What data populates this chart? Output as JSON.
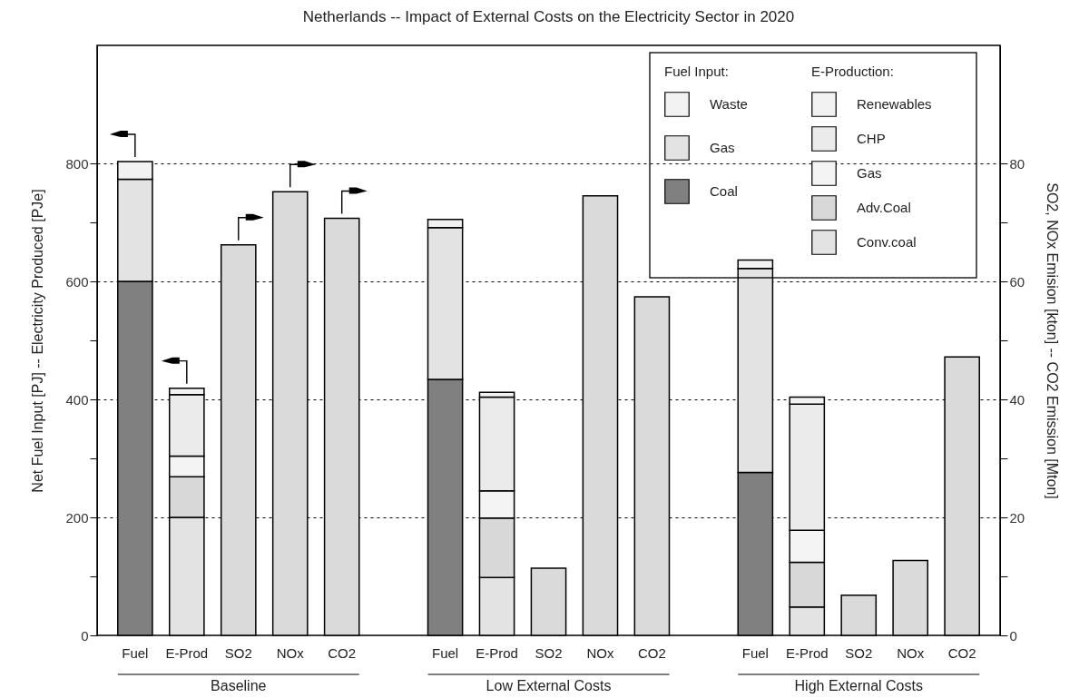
{
  "chart_data": {
    "type": "bar",
    "title": "Netherlands -- Impact of External Costs on the Electricity Sector in 2020",
    "ylabel": "Net Fuel Input [PJ]  --  Electricity Produced [PJe]",
    "y2label": "SO2, NOx Emision [kton]  --  CO2 Emission [Mton]",
    "legend_title": [
      "Fuel Input:",
      "E-Production:"
    ],
    "categories": [
      "Fuel",
      "E-Prod",
      "SO2",
      "NOx",
      "CO2",
      null,
      "Fuel",
      "E-Prod",
      "SO2",
      "NOx",
      "CO2",
      null,
      "Fuel",
      "E-Prod",
      "SO2",
      "NOx",
      "CO2"
    ],
    "stacked": true,
    "series": [
      {
        "name": "Coal",
        "color": "#808080",
        "values": [
          600,
          null,
          null,
          null,
          null,
          null,
          434,
          null,
          null,
          null,
          null,
          null,
          276,
          null,
          null,
          null,
          null
        ]
      },
      {
        "name": "Gas",
        "color": "#e3e3e3",
        "values": [
          173,
          null,
          null,
          null,
          null,
          null,
          257,
          null,
          null,
          null,
          null,
          null,
          346,
          null,
          null,
          null,
          null
        ]
      },
      {
        "name": "Waste",
        "color": "#f2f2f2",
        "values": [
          30,
          null,
          null,
          null,
          null,
          null,
          14,
          null,
          null,
          null,
          null,
          null,
          14,
          null,
          null,
          null,
          null
        ]
      },
      {
        "name": "Conv.coal",
        "color": "#e3e3e3",
        "values": [
          null,
          200,
          null,
          null,
          null,
          null,
          null,
          98,
          null,
          null,
          null,
          null,
          null,
          48,
          null,
          null,
          null
        ]
      },
      {
        "name": "Adv.Coal",
        "color": "#d8d8d8",
        "values": [
          null,
          69,
          null,
          null,
          null,
          null,
          null,
          101,
          null,
          null,
          null,
          null,
          null,
          76,
          null,
          null,
          null
        ]
      },
      {
        "name": "Gas",
        "color": "#f4f4f4",
        "values": [
          null,
          35,
          null,
          null,
          null,
          null,
          null,
          46,
          null,
          null,
          null,
          null,
          null,
          54,
          null,
          null,
          null
        ]
      },
      {
        "name": "CHP",
        "color": "#ebebeb",
        "values": [
          null,
          104,
          null,
          null,
          null,
          null,
          null,
          159,
          null,
          null,
          null,
          null,
          null,
          214,
          null,
          null,
          null
        ]
      },
      {
        "name": "Renewables",
        "color": "#f2f2f2",
        "values": [
          null,
          11,
          null,
          null,
          null,
          null,
          null,
          8,
          null,
          null,
          null,
          null,
          null,
          12,
          null,
          null,
          null
        ]
      },
      {
        "color": "#dadada",
        "axis": "y2",
        "values": [
          null,
          null,
          66.2,
          75.2,
          70.7,
          null,
          null,
          null,
          11.4,
          74.5,
          57.4,
          null,
          null,
          null,
          6.8,
          12.7,
          47.2
        ]
      }
    ],
    "ylim": [
      0,
      1000
    ],
    "yticks": [
      0,
      {
        "value": 100,
        "label": null
      },
      200,
      {
        "value": 300,
        "label": null
      },
      400,
      {
        "value": 500,
        "label": null
      },
      600,
      {
        "value": 700,
        "label": null
      },
      800
    ],
    "y2lim": [
      0,
      100
    ],
    "y2ticks": [
      0,
      {
        "value": 10,
        "label": null
      },
      20,
      {
        "value": 30,
        "label": null
      },
      40,
      {
        "value": 50,
        "label": null
      },
      60,
      {
        "value": 70,
        "label": null
      },
      80
    ],
    "grid": "y",
    "legend": "top right",
    "annotations": [
      "Baseline",
      "Low External Costs",
      "High External Costs"
    ]
  }
}
